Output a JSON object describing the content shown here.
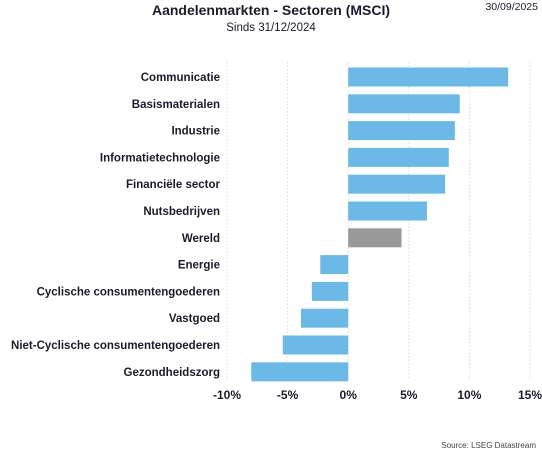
{
  "header": {
    "title": "Aandelenmarkten - Sectoren (MSCI)",
    "subtitle": "Sinds 31/12/2024",
    "date": "30/09/2025"
  },
  "footer": {
    "source": "Source: LSEG Datastream"
  },
  "colors": {
    "bar": "#6cb8e6",
    "highlight": "#999999",
    "grid": "#d9d9d9"
  },
  "chart_data": {
    "type": "bar",
    "orientation": "horizontal",
    "title": "Aandelenmarkten - Sectoren (MSCI)",
    "subtitle": "Sinds 31/12/2024",
    "categories": [
      "Communicatie",
      "Basismaterialen",
      "Industrie",
      "Informatietechnologie",
      "Financiële sector",
      "Nutsbedrijven",
      "Wereld",
      "Energie",
      "Cyclische consumentengoederen",
      "Vastgoed",
      "Niet-Cyclische consumentengoederen",
      "Gezondheidszorg"
    ],
    "values": [
      13.2,
      9.2,
      8.8,
      8.3,
      8.0,
      6.5,
      4.4,
      -2.3,
      -3.0,
      -3.9,
      -5.4,
      -8.0
    ],
    "highlight_category": "Wereld",
    "xlim": [
      -10,
      15
    ],
    "xticks": [
      -10,
      -5,
      0,
      5,
      10,
      15
    ],
    "xtick_labels": [
      "-10%",
      "-5%",
      "0%",
      "5%",
      "10%",
      "15%"
    ],
    "xlabel": "",
    "ylabel": "",
    "grid": "vertical-dotted",
    "legend": "none"
  }
}
